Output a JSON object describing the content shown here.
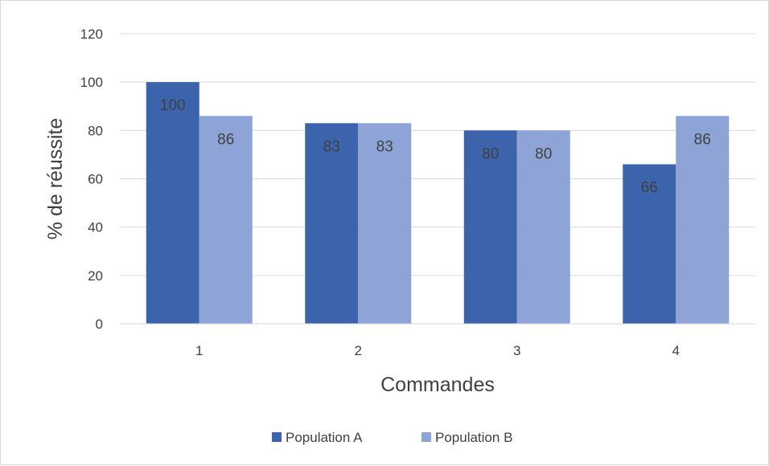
{
  "chart_data": {
    "type": "bar",
    "title": "",
    "xlabel": "Commandes",
    "ylabel": "% de réussite",
    "categories": [
      "1",
      "2",
      "3",
      "4"
    ],
    "ylim": [
      0,
      120
    ],
    "yticks": [
      0,
      20,
      40,
      60,
      80,
      100,
      120
    ],
    "grid": true,
    "legend_position": "bottom",
    "series": [
      {
        "name": "Population A",
        "color": "#3c64ad",
        "values": [
          100,
          83,
          80,
          66
        ]
      },
      {
        "name": "Population B",
        "color": "#8fa4d6",
        "values": [
          86,
          83,
          80,
          86
        ]
      }
    ]
  }
}
